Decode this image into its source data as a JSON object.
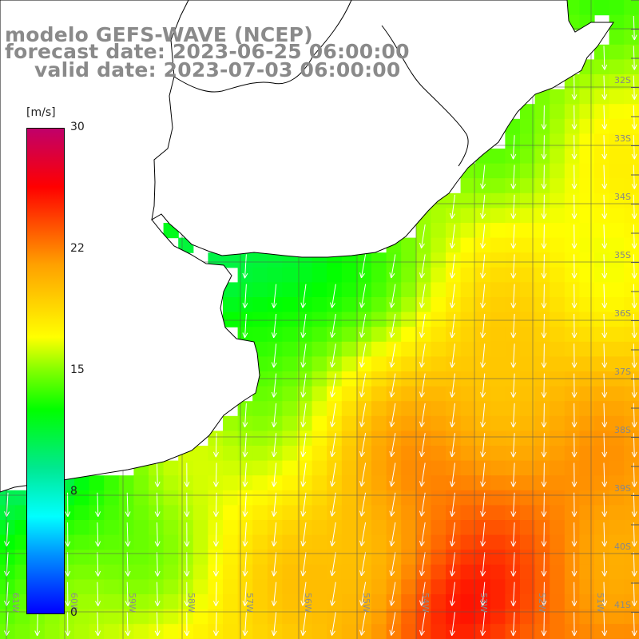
{
  "title": {
    "line1": "modelo GEFS-WAVE (NCEP)",
    "line2": "forecast date: 2023-06-25 06:00:00",
    "line3": "valid date: 2023-07-03 06:00:00"
  },
  "colorbar": {
    "unit": "[m/s]",
    "ticks": [
      "30",
      "22",
      "15",
      "8",
      "0"
    ],
    "colors": [
      "#0000ff",
      "#00ffff",
      "#00ff00",
      "#ffff00",
      "#ffa000",
      "#ff0000",
      "#c0006a"
    ]
  },
  "latitude_labels": [
    "32S",
    "33S",
    "34S",
    "35S",
    "36S",
    "37S",
    "38S",
    "39S",
    "40S",
    "41S"
  ],
  "longitude_labels": [
    "61W",
    "60W",
    "59W",
    "58W",
    "57W",
    "56W",
    "55W",
    "54W",
    "53W",
    "52W",
    "51W"
  ],
  "colors": {
    "land": "#ffffff",
    "coastline": "#000000",
    "grid": "#555555",
    "arrows": "#ffffff",
    "title_text": "#8a8a8a"
  }
}
